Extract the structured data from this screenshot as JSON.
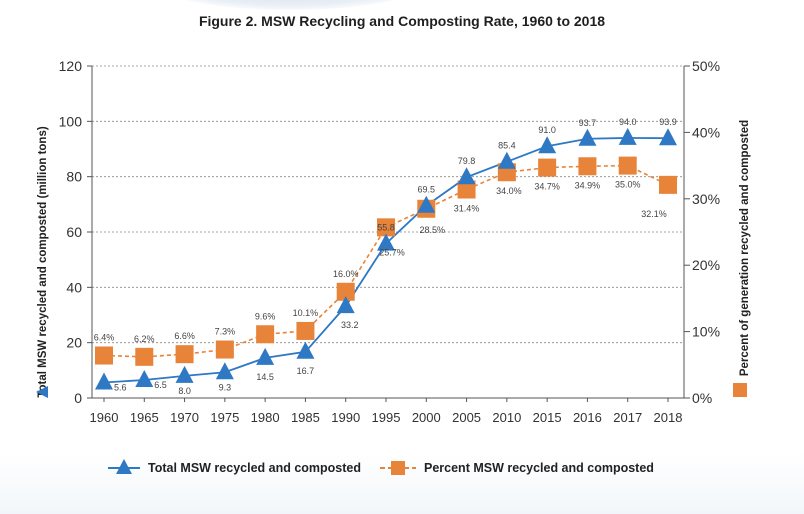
{
  "chart_data": {
    "type": "line",
    "title": "Figure 2. MSW Recycling and Composting Rate, 1960 to 2018",
    "categories": [
      "1960",
      "1965",
      "1970",
      "1975",
      "1980",
      "1985",
      "1990",
      "1995",
      "2000",
      "2005",
      "2010",
      "2015",
      "2016",
      "2017",
      "2018"
    ],
    "ylabel": "Total MSW recycled and composted (million tons)",
    "ylabel2": "Percent of generation recycled and composted",
    "ylim": [
      0,
      120
    ],
    "yticks": [
      "0",
      "20",
      "40",
      "60",
      "80",
      "100",
      "120"
    ],
    "ylim2": [
      0,
      50
    ],
    "yticks2": [
      "0%",
      "10%",
      "20%",
      "30%",
      "40%",
      "50%"
    ],
    "grid": true,
    "legend_position": "bottom",
    "series": [
      {
        "name": "Total MSW recycled and composted",
        "axis": "left",
        "marker": "triangle",
        "color": "#2e78c4",
        "values": [
          5.6,
          6.5,
          8.0,
          9.3,
          14.5,
          16.7,
          33.2,
          55.8,
          69.5,
          79.8,
          85.4,
          91.0,
          93.7,
          94.0,
          93.9
        ],
        "labels": [
          "5.6",
          "6.5",
          "8.0",
          "9.3",
          "14.5",
          "16.7",
          "33.2",
          "55.8",
          "69.5",
          "79.8",
          "85.4",
          "91.0",
          "93.7",
          "94.0",
          "93.9"
        ]
      },
      {
        "name": "Percent MSW recycled and composted",
        "axis": "right",
        "marker": "square",
        "color": "#e8833a",
        "values": [
          6.4,
          6.2,
          6.6,
          7.3,
          9.6,
          10.1,
          16.0,
          25.7,
          28.5,
          31.4,
          34.0,
          34.7,
          34.9,
          35.0,
          32.1
        ],
        "labels": [
          "6.4%",
          "6.2%",
          "6.6%",
          "7.3%",
          "9.6%",
          "10.1%",
          "16.0%",
          "25.7%",
          "28.5%",
          "31.4%",
          "34.0%",
          "34.7%",
          "34.9%",
          "35.0%",
          "32.1%"
        ]
      }
    ]
  }
}
